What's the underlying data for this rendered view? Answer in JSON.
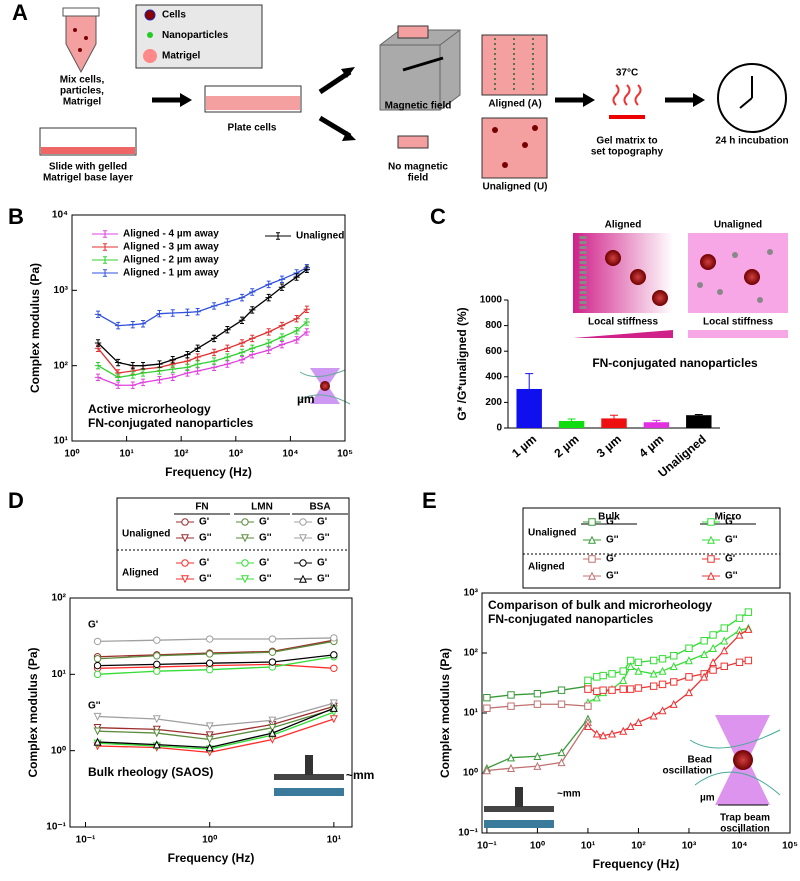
{
  "schematic": {
    "panel": "A",
    "legend": [
      "Cells",
      "Nanoparticles",
      "Matrigel"
    ],
    "labels": [
      [
        "Mix cells,",
        "particles,",
        "Matrigel"
      ],
      [
        "Slide with gelled",
        "Matrigel base layer"
      ],
      [
        "Plate cells"
      ],
      [
        "Magnetic field"
      ],
      [
        "No magnetic",
        "field"
      ],
      [
        "Aligned (A)"
      ],
      [
        "Unaligned (U)"
      ],
      [
        "37°C"
      ],
      [
        "Gel matrix to",
        "set topography"
      ],
      [
        "24 h incubation"
      ]
    ]
  },
  "chart_data": [
    {
      "panel": "B",
      "type": "line",
      "xlabel": "Frequency (Hz)",
      "ylabel": "Complex modulus (Pa)",
      "log_x": true,
      "log_y": true,
      "xlim": [
        1,
        100000
      ],
      "ylim": [
        10,
        10000
      ],
      "xticks": [
        {
          "value": 1,
          "label": "10⁰"
        },
        {
          "value": 10,
          "label": "10¹"
        },
        {
          "value": 100,
          "label": "10²"
        },
        {
          "value": 1000,
          "label": "10³"
        },
        {
          "value": 10000,
          "label": "10⁴"
        },
        {
          "value": 100000,
          "label": "10⁵"
        }
      ],
      "yticks": [
        {
          "value": 10,
          "label": "10¹"
        },
        {
          "value": 100,
          "label": "10²"
        },
        {
          "value": 1000,
          "label": "10³"
        },
        {
          "value": 10000,
          "label": "10⁴"
        }
      ],
      "x": [
        3,
        7,
        13,
        20,
        40,
        70,
        130,
        200,
        400,
        700,
        1300,
        2000,
        4000,
        7000,
        13000,
        20000
      ],
      "series": [
        {
          "name": "Aligned - 4 µm away",
          "color": "#e040e0",
          "marker": "x",
          "values": [
            70,
            55,
            55,
            60,
            65,
            70,
            80,
            85,
            95,
            105,
            120,
            140,
            160,
            190,
            220,
            280
          ]
        },
        {
          "name": "Aligned - 3 µm away",
          "color": "#e03030",
          "marker": "x",
          "values": [
            170,
            80,
            85,
            90,
            95,
            105,
            115,
            130,
            150,
            170,
            200,
            230,
            280,
            340,
            420,
            560
          ]
        },
        {
          "name": "Aligned - 2 µm away",
          "color": "#30d030",
          "marker": "x",
          "values": [
            100,
            70,
            75,
            80,
            85,
            90,
            95,
            105,
            115,
            130,
            150,
            170,
            200,
            240,
            290,
            380
          ]
        },
        {
          "name": "Aligned - 1 µm away",
          "color": "#3050e0",
          "marker": "x",
          "values": [
            480,
            340,
            350,
            360,
            490,
            500,
            510,
            520,
            620,
            700,
            800,
            950,
            1200,
            1400,
            1700,
            2000
          ]
        },
        {
          "name": "Unaligned",
          "color": "#000000",
          "marker": "x",
          "values": [
            200,
            110,
            100,
            100,
            105,
            120,
            140,
            170,
            230,
            300,
            400,
            550,
            800,
            1100,
            1500,
            1900
          ]
        }
      ],
      "annotations": [
        "Active microrheology",
        "FN-conjugated nanoparticles",
        "µm"
      ]
    },
    {
      "panel": "C",
      "type": "bar",
      "ylabel": "G* /G*unaligned (%)",
      "categories": [
        "1 µm",
        "2 µm",
        "3 µm",
        "4 µm",
        "Unaligned"
      ],
      "values": [
        305,
        55,
        75,
        45,
        100
      ],
      "errors": [
        120,
        15,
        25,
        15,
        5
      ],
      "colors": [
        "#1010ee",
        "#10dd10",
        "#ee1010",
        "#e030e0",
        "#000000"
      ],
      "ylim": [
        0,
        1000
      ],
      "yticks": [
        0,
        200,
        400,
        600,
        800,
        1000
      ],
      "insets": [
        "Aligned",
        "Unaligned"
      ],
      "annotations": [
        "Local stiffness",
        "Local stiffness",
        "FN-conjugated nanoparticles"
      ]
    },
    {
      "panel": "D",
      "type": "line",
      "xlabel": "Frequency (Hz)",
      "ylabel": "Complex modulus (Pa)",
      "log_x": true,
      "log_y": true,
      "xlim": [
        0.075,
        14
      ],
      "ylim": [
        0.1,
        100
      ],
      "xticks": [
        {
          "value": 0.1,
          "label": "10⁻¹"
        },
        {
          "value": 1,
          "label": "10⁰"
        },
        {
          "value": 10,
          "label": "10¹"
        }
      ],
      "yticks": [
        {
          "value": 0.1,
          "label": "10⁻¹"
        },
        {
          "value": 1,
          "label": "10⁰"
        },
        {
          "value": 10,
          "label": "10¹"
        },
        {
          "value": 100,
          "label": "10²"
        }
      ],
      "x": [
        0.125,
        0.375,
        1,
        3.2,
        10
      ],
      "legend": {
        "columns": [
          "FN",
          "LMN",
          "BSA"
        ],
        "rows": [
          "Unaligned",
          "Aligned"
        ]
      },
      "series": [
        {
          "name": "G'",
          "color": "#9b2d2d",
          "marker": "circle",
          "values": [
            17,
            18,
            19,
            20,
            28
          ]
        },
        {
          "name": "G''",
          "color": "#9b2d2d",
          "marker": "triangle-down",
          "values": [
            2.0,
            1.9,
            1.6,
            2.2,
            3.8
          ]
        },
        {
          "name": "G'",
          "color": "#5a8a3a",
          "marker": "circle",
          "values": [
            16,
            17.5,
            18.5,
            19.5,
            27
          ]
        },
        {
          "name": "G''",
          "color": "#5a8a3a",
          "marker": "triangle-down",
          "values": [
            1.8,
            1.7,
            1.4,
            2.0,
            3.5
          ]
        },
        {
          "name": "G'",
          "color": "#a0a0a0",
          "marker": "circle",
          "values": [
            27,
            28,
            29,
            29,
            30
          ]
        },
        {
          "name": "G''",
          "color": "#a0a0a0",
          "marker": "triangle-down",
          "values": [
            2.8,
            2.6,
            2.1,
            2.5,
            4.2
          ]
        },
        {
          "name": "G'",
          "color": "#ff2a2a",
          "marker": "circle",
          "values": [
            12,
            12.5,
            13,
            13.5,
            12
          ]
        },
        {
          "name": "G''",
          "color": "#ff2a2a",
          "marker": "triangle-down",
          "values": [
            1.15,
            1.1,
            0.95,
            1.4,
            2.6
          ]
        },
        {
          "name": "G'",
          "color": "#33dd33",
          "marker": "circle",
          "values": [
            10,
            11,
            11.5,
            12.5,
            17
          ]
        },
        {
          "name": "G''",
          "color": "#33dd33",
          "marker": "triangle-down",
          "values": [
            1.25,
            1.15,
            1.05,
            1.6,
            3.2
          ]
        },
        {
          "name": "G'",
          "color": "#000000",
          "marker": "circle",
          "values": [
            13,
            13.5,
            14,
            14.5,
            18
          ]
        },
        {
          "name": "G''",
          "color": "#000000",
          "marker": "triangle",
          "values": [
            1.3,
            1.2,
            1.1,
            1.7,
            3.6
          ]
        }
      ],
      "annotations": [
        "G'",
        "G''",
        "Bulk rheology (SAOS)",
        "~mm"
      ]
    },
    {
      "panel": "E",
      "type": "line",
      "xlabel": "Frequency (Hz)",
      "ylabel": "Complex modulus (Pa)",
      "log_x": true,
      "log_y": true,
      "xlim": [
        0.08,
        100000
      ],
      "ylim": [
        0.1,
        1000
      ],
      "xticks": [
        {
          "value": 0.1,
          "label": "10⁻¹"
        },
        {
          "value": 1,
          "label": "10⁰"
        },
        {
          "value": 10,
          "label": "10¹"
        },
        {
          "value": 100,
          "label": "10²"
        },
        {
          "value": 1000,
          "label": "10³"
        },
        {
          "value": 10000,
          "label": "10⁴"
        },
        {
          "value": 100000,
          "label": "10⁵"
        }
      ],
      "yticks": [
        {
          "value": 0.1,
          "label": "10⁻¹"
        },
        {
          "value": 1,
          "label": "10⁰"
        },
        {
          "value": 10,
          "label": "10¹"
        },
        {
          "value": 100,
          "label": "10²"
        },
        {
          "value": 1000,
          "label": "10³"
        }
      ],
      "legend": {
        "columns": [
          "Bulk",
          "Micro"
        ],
        "rows": [
          "Unaligned",
          "Aligned"
        ]
      },
      "series": [
        {
          "name": "G'",
          "color": "#3a9a3a",
          "marker": "square",
          "x": [
            0.1,
            0.3,
            1,
            3,
            10
          ],
          "values": [
            18,
            20,
            21,
            24,
            28
          ]
        },
        {
          "name": "G''",
          "color": "#3a9a3a",
          "marker": "triangle",
          "x": [
            0.1,
            0.3,
            1,
            3,
            10
          ],
          "values": [
            1.2,
            1.8,
            1.9,
            2.2,
            8
          ]
        },
        {
          "name": "G'",
          "color": "#33dd33",
          "marker": "square",
          "x": [
            10,
            15,
            20,
            30,
            50,
            70,
            100,
            200,
            300,
            500,
            1000,
            2000,
            3000,
            5000,
            10000,
            15000
          ],
          "values": [
            35,
            40,
            42,
            45,
            50,
            75,
            70,
            75,
            80,
            90,
            120,
            160,
            200,
            260,
            380,
            480
          ]
        },
        {
          "name": "G''",
          "color": "#33dd33",
          "marker": "triangle",
          "x": [
            10,
            15,
            20,
            30,
            50,
            70,
            100,
            200,
            300,
            500,
            1000,
            2000,
            3000,
            5000,
            10000,
            15000
          ],
          "values": [
            15,
            18,
            22,
            25,
            35,
            60,
            50,
            45,
            50,
            60,
            75,
            95,
            120,
            160,
            240,
            260
          ]
        },
        {
          "name": "G'",
          "color": "#c07070",
          "marker": "square",
          "x": [
            0.1,
            0.3,
            1,
            3,
            10
          ],
          "values": [
            12,
            13,
            14,
            14,
            13
          ]
        },
        {
          "name": "G''",
          "color": "#c07070",
          "marker": "triangle",
          "x": [
            0.1,
            0.3,
            1,
            3,
            10
          ],
          "values": [
            1.1,
            1.2,
            1.3,
            1.5,
            7
          ]
        },
        {
          "name": "G'",
          "color": "#ee3333",
          "marker": "square",
          "x": [
            10,
            15,
            20,
            30,
            50,
            70,
            100,
            200,
            300,
            500,
            1000,
            2000,
            3000,
            5000,
            10000,
            15000
          ],
          "values": [
            25,
            23,
            24,
            24,
            25,
            25,
            26,
            28,
            30,
            33,
            40,
            45,
            52,
            60,
            70,
            75
          ]
        },
        {
          "name": "G''",
          "color": "#ee3333",
          "marker": "triangle",
          "x": [
            10,
            15,
            20,
            30,
            50,
            70,
            100,
            200,
            300,
            500,
            1000,
            2000,
            3000,
            5000,
            10000,
            15000
          ],
          "values": [
            6,
            4.5,
            4.2,
            4.5,
            5,
            6,
            7,
            9,
            11,
            14,
            22,
            40,
            70,
            110,
            200,
            250
          ]
        }
      ],
      "annotations": [
        "Comparison of bulk and microrheology",
        "FN-conjugated nanoparticles",
        "~mm",
        "Bead",
        "oscillation",
        "µm",
        "Trap beam",
        "oscillation"
      ]
    }
  ]
}
